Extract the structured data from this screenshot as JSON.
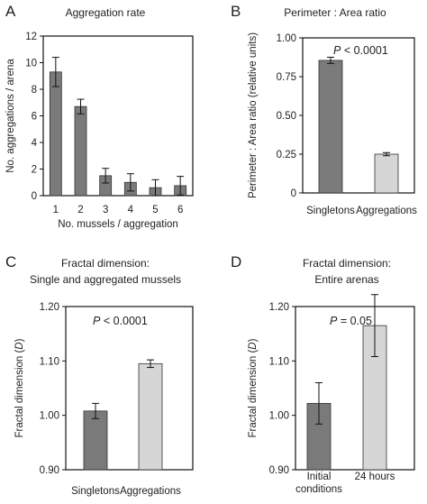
{
  "chart_data": [
    {
      "panel": "A",
      "type": "bar",
      "title": "Aggregation rate",
      "xlabel": "No. mussels / aggregation",
      "ylabel": "No. aggregations / arena",
      "categories": [
        "1",
        "2",
        "3",
        "4",
        "5",
        "6"
      ],
      "values": [
        9.3,
        6.7,
        1.5,
        1.0,
        0.6,
        0.75
      ],
      "errors": [
        1.1,
        0.55,
        0.55,
        0.65,
        0.6,
        0.7
      ],
      "bar_colors": [
        "#7a7a7a",
        "#7a7a7a",
        "#7a7a7a",
        "#7a7a7a",
        "#7a7a7a",
        "#7a7a7a"
      ],
      "ylim": [
        0,
        12
      ],
      "yticks": [
        "0",
        "2",
        "4",
        "6",
        "8",
        "10",
        "12"
      ],
      "annotation": "",
      "annotation_italic": ""
    },
    {
      "panel": "B",
      "type": "bar",
      "title": "Perimeter : Area ratio",
      "xlabel": "",
      "ylabel": "Perimeter : Area ratio (relative units)",
      "categories": [
        "Singletons",
        "Aggregations"
      ],
      "values": [
        0.855,
        0.25
      ],
      "errors": [
        0.02,
        0.01
      ],
      "bar_colors": [
        "#7a7a7a",
        "#d6d6d6"
      ],
      "ylim": [
        0,
        1.0
      ],
      "yticks": [
        "0",
        "0.25",
        "0.50",
        "0.75",
        "1.00"
      ],
      "annotation": " < 0.0001",
      "annotation_italic": "P"
    },
    {
      "panel": "C",
      "type": "bar",
      "title": "Fractal dimension:\nSingle and aggregated mussels",
      "xlabel": "",
      "ylabel": "Fractal dimension (D)",
      "categories": [
        "Singletons",
        "Aggregations"
      ],
      "values": [
        1.008,
        1.095
      ],
      "errors": [
        0.014,
        0.007
      ],
      "bar_colors": [
        "#7a7a7a",
        "#d6d6d6"
      ],
      "ylim": [
        0.9,
        1.2
      ],
      "yticks": [
        "0.90",
        "1.00",
        "1.10",
        "1.20"
      ],
      "annotation": " < 0.0001",
      "annotation_italic": "P"
    },
    {
      "panel": "D",
      "type": "bar",
      "title": "Fractal dimension:\nEntire arenas",
      "xlabel": "",
      "ylabel": "Fractal dimension (D)",
      "categories": [
        "Initial\nconditions",
        "24 hours"
      ],
      "values": [
        1.022,
        1.165
      ],
      "errors": [
        0.038,
        0.057
      ],
      "bar_colors": [
        "#7a7a7a",
        "#d6d6d6"
      ],
      "ylim": [
        0.9,
        1.2
      ],
      "yticks": [
        "0.90",
        "1.00",
        "1.10",
        "1.20"
      ],
      "annotation": " = 0.05",
      "annotation_italic": "P"
    }
  ]
}
